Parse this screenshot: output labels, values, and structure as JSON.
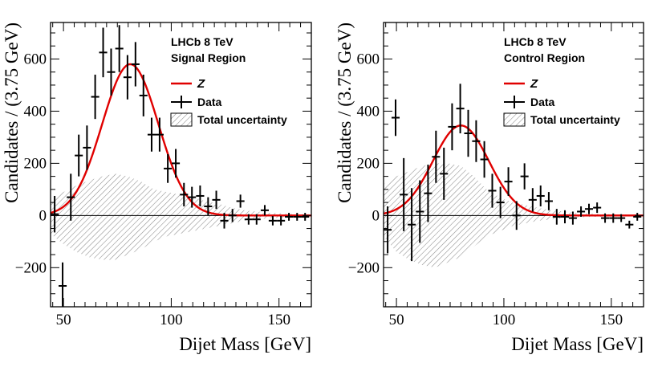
{
  "chart_data": [
    {
      "type": "line",
      "name": "signal-region",
      "title": "",
      "annotation": [
        "LHCb 8 TeV",
        "Signal Region"
      ],
      "xlabel": "Dijet Mass [GeV]",
      "ylabel": "Candidates / (3.75 GeV)",
      "xlim": [
        44,
        165
      ],
      "ylim": [
        -350,
        740
      ],
      "xticks": [
        50,
        100,
        150
      ],
      "xtick_labels": [
        "50",
        "100",
        "150"
      ],
      "yticks": [
        -200,
        0,
        200,
        400,
        600
      ],
      "ytick_labels": [
        "−200",
        "0",
        "200",
        "400",
        "600"
      ],
      "legend": [
        "Z",
        "Data",
        "Total uncertainty"
      ],
      "legend_position": "top-right",
      "colors": {
        "fit": "#e00000",
        "data": "#000000",
        "band": "#888888"
      },
      "fit_curve": {
        "name": "Z",
        "mean": 81,
        "sigma": 13,
        "amplitude": 580
      },
      "data_series": {
        "name": "Data",
        "x": [
          45.9,
          49.6,
          53.4,
          57.1,
          60.9,
          64.7,
          68.4,
          72.1,
          75.9,
          79.7,
          83.4,
          87.1,
          90.9,
          94.6,
          98.4,
          102.1,
          105.9,
          109.6,
          113.4,
          117.1,
          120.9,
          124.6,
          128.4,
          132.1,
          135.9,
          139.6,
          143.4,
          147.1,
          150.9,
          154.6,
          158.4,
          162.1
        ],
        "y": [
          5,
          -270,
          70,
          230,
          260,
          455,
          625,
          550,
          640,
          530,
          580,
          460,
          310,
          310,
          180,
          200,
          80,
          70,
          75,
          35,
          60,
          -20,
          0,
          55,
          -15,
          -15,
          20,
          -20,
          -20,
          -5,
          -5,
          -5
        ],
        "yerr": [
          70,
          90,
          90,
          80,
          85,
          85,
          95,
          90,
          90,
          85,
          85,
          80,
          65,
          65,
          55,
          55,
          45,
          40,
          40,
          35,
          35,
          30,
          25,
          25,
          20,
          20,
          20,
          18,
          18,
          15,
          15,
          15
        ]
      },
      "uncertainty_band": {
        "name": "Total uncertainty",
        "x": [
          44,
          50,
          56,
          62,
          68,
          74,
          80,
          86,
          92,
          98,
          104,
          110,
          116,
          122,
          128,
          134,
          140,
          146,
          152,
          158,
          165
        ],
        "upper": [
          60,
          90,
          115,
          135,
          150,
          160,
          150,
          130,
          100,
          90,
          80,
          70,
          55,
          45,
          30,
          20,
          15,
          10,
          8,
          5,
          5
        ],
        "lower": [
          -70,
          -110,
          -140,
          -160,
          -170,
          -170,
          -150,
          -130,
          -100,
          -80,
          -70,
          -60,
          -50,
          -40,
          -30,
          -20,
          -15,
          -10,
          -8,
          -5,
          -5
        ]
      }
    },
    {
      "type": "line",
      "name": "control-region",
      "title": "",
      "annotation": [
        "LHCb 8 TeV",
        "Control Region"
      ],
      "xlabel": "Dijet Mass [GeV]",
      "ylabel": "Candidates / (3.75 GeV)",
      "xlim": [
        44,
        165
      ],
      "ylim": [
        -350,
        740
      ],
      "xticks": [
        50,
        100,
        150
      ],
      "xtick_labels": [
        "50",
        "100",
        "150"
      ],
      "yticks": [
        -200,
        0,
        200,
        400,
        600
      ],
      "ytick_labels": [
        "−200",
        "0",
        "200",
        "400",
        "600"
      ],
      "legend": [
        "Z",
        "Data",
        "Total uncertainty"
      ],
      "legend_position": "top-right",
      "colors": {
        "fit": "#e00000",
        "data": "#000000",
        "band": "#888888"
      },
      "fit_curve": {
        "name": "Z",
        "mean": 80,
        "sigma": 13,
        "amplitude": 345
      },
      "data_series": {
        "name": "Data",
        "x": [
          45.9,
          49.6,
          53.4,
          57.1,
          60.9,
          64.7,
          68.4,
          72.1,
          75.9,
          79.7,
          83.4,
          87.1,
          90.9,
          94.6,
          98.4,
          102.1,
          105.9,
          109.6,
          113.4,
          117.1,
          120.9,
          124.6,
          128.4,
          132.1,
          135.9,
          139.6,
          143.4,
          147.1,
          150.9,
          154.6,
          158.4,
          162.1
        ],
        "y": [
          -55,
          375,
          80,
          -35,
          15,
          85,
          225,
          160,
          340,
          410,
          315,
          285,
          215,
          95,
          50,
          130,
          0,
          150,
          60,
          75,
          55,
          -5,
          -5,
          -10,
          15,
          25,
          30,
          -10,
          -10,
          -10,
          -35,
          -5
        ],
        "yerr": [
          90,
          70,
          140,
          140,
          120,
          110,
          100,
          100,
          90,
          95,
          90,
          80,
          70,
          65,
          60,
          55,
          55,
          50,
          45,
          40,
          35,
          30,
          25,
          25,
          20,
          20,
          20,
          18,
          18,
          15,
          15,
          15
        ]
      },
      "uncertainty_band": {
        "name": "Total uncertainty",
        "x": [
          44,
          50,
          56,
          62,
          68,
          74,
          80,
          86,
          92,
          98,
          104,
          110,
          116,
          122,
          128,
          134,
          140,
          146,
          152,
          158,
          165
        ],
        "upper": [
          120,
          150,
          170,
          190,
          200,
          200,
          190,
          150,
          100,
          70,
          50,
          40,
          30,
          20,
          15,
          10,
          8,
          5,
          5,
          3,
          3
        ],
        "lower": [
          -80,
          -140,
          -170,
          -190,
          -200,
          -180,
          -160,
          -120,
          -80,
          -60,
          -40,
          -30,
          -20,
          -15,
          -10,
          -8,
          -5,
          -5,
          -3,
          -3,
          -3
        ]
      }
    }
  ]
}
